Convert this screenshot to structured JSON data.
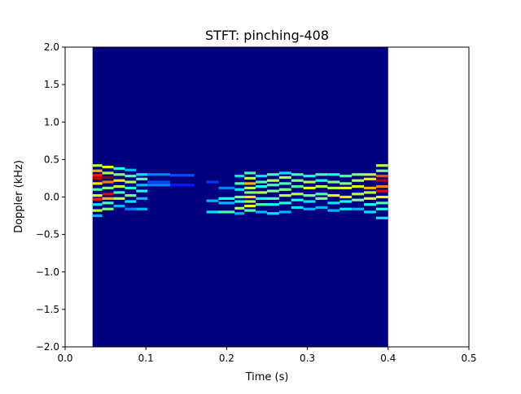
{
  "chart_data": {
    "type": "heatmap",
    "title": "STFT: pinching-408",
    "xlabel": "Time (s)",
    "ylabel": "Doppler (kHz)",
    "xlim": [
      0.0,
      0.5
    ],
    "ylim": [
      -2.0,
      2.0
    ],
    "x_ticks": [
      0.0,
      0.1,
      0.2,
      0.3,
      0.4,
      0.5
    ],
    "x_tick_labels": [
      "0.0",
      "0.1",
      "0.2",
      "0.3",
      "0.4",
      "0.5"
    ],
    "y_ticks": [
      -2.0,
      -1.5,
      -1.0,
      -0.5,
      0.0,
      0.5,
      1.0,
      1.5,
      2.0
    ],
    "y_tick_labels": [
      "−2.0",
      "−1.5",
      "−1.0",
      "−0.5",
      "0.0",
      "0.5",
      "1.0",
      "1.5",
      "2.0"
    ],
    "grid": false,
    "colormap": "jet",
    "background_color": "#00007f",
    "data_extent": {
      "time": [
        0.034,
        0.4
      ],
      "doppler": [
        -2.0,
        2.0
      ]
    },
    "intensity_scale": [
      0,
      1
    ],
    "cells": [
      {
        "t0": 0.034,
        "t1": 0.046,
        "f": 0.42,
        "v": 0.55
      },
      {
        "t0": 0.034,
        "t1": 0.046,
        "f": 0.35,
        "v": 0.7
      },
      {
        "t0": 0.034,
        "t1": 0.046,
        "f": 0.29,
        "v": 0.85
      },
      {
        "t0": 0.034,
        "t1": 0.046,
        "f": 0.25,
        "v": 0.95
      },
      {
        "t0": 0.034,
        "t1": 0.046,
        "f": 0.18,
        "v": 0.65
      },
      {
        "t0": 0.034,
        "t1": 0.046,
        "f": 0.1,
        "v": 0.45
      },
      {
        "t0": 0.034,
        "t1": 0.046,
        "f": 0.02,
        "v": 0.6
      },
      {
        "t0": 0.034,
        "t1": 0.046,
        "f": -0.03,
        "v": 0.85
      },
      {
        "t0": 0.034,
        "t1": 0.046,
        "f": -0.1,
        "v": 0.35
      },
      {
        "t0": 0.034,
        "t1": 0.046,
        "f": -0.18,
        "v": 0.55
      },
      {
        "t0": 0.034,
        "t1": 0.046,
        "f": -0.25,
        "v": 0.3
      },
      {
        "t0": 0.046,
        "t1": 0.06,
        "f": 0.4,
        "v": 0.6
      },
      {
        "t0": 0.046,
        "t1": 0.06,
        "f": 0.32,
        "v": 0.55
      },
      {
        "t0": 0.046,
        "t1": 0.06,
        "f": 0.26,
        "v": 1.0
      },
      {
        "t0": 0.046,
        "t1": 0.06,
        "f": 0.2,
        "v": 0.75
      },
      {
        "t0": 0.046,
        "t1": 0.06,
        "f": 0.12,
        "v": 0.5
      },
      {
        "t0": 0.046,
        "t1": 0.06,
        "f": 0.04,
        "v": 0.9
      },
      {
        "t0": 0.046,
        "t1": 0.06,
        "f": -0.02,
        "v": 0.7
      },
      {
        "t0": 0.046,
        "t1": 0.06,
        "f": -0.08,
        "v": 0.45
      },
      {
        "t0": 0.046,
        "t1": 0.06,
        "f": -0.16,
        "v": 0.5
      },
      {
        "t0": 0.06,
        "t1": 0.074,
        "f": 0.38,
        "v": 0.4
      },
      {
        "t0": 0.06,
        "t1": 0.074,
        "f": 0.3,
        "v": 0.5
      },
      {
        "t0": 0.06,
        "t1": 0.074,
        "f": 0.22,
        "v": 0.65
      },
      {
        "t0": 0.06,
        "t1": 0.074,
        "f": 0.14,
        "v": 0.55
      },
      {
        "t0": 0.06,
        "t1": 0.074,
        "f": 0.06,
        "v": 0.45
      },
      {
        "t0": 0.06,
        "t1": 0.074,
        "f": -0.02,
        "v": 0.55
      },
      {
        "t0": 0.06,
        "t1": 0.074,
        "f": -0.12,
        "v": 0.3
      },
      {
        "t0": 0.074,
        "t1": 0.088,
        "f": 0.36,
        "v": 0.3
      },
      {
        "t0": 0.074,
        "t1": 0.088,
        "f": 0.28,
        "v": 0.45
      },
      {
        "t0": 0.074,
        "t1": 0.088,
        "f": 0.2,
        "v": 0.55
      },
      {
        "t0": 0.074,
        "t1": 0.088,
        "f": 0.12,
        "v": 0.4
      },
      {
        "t0": 0.074,
        "t1": 0.088,
        "f": 0.02,
        "v": 0.5
      },
      {
        "t0": 0.074,
        "t1": 0.088,
        "f": -0.06,
        "v": 0.35
      },
      {
        "t0": 0.074,
        "t1": 0.088,
        "f": -0.16,
        "v": 0.25
      },
      {
        "t0": 0.088,
        "t1": 0.102,
        "f": 0.3,
        "v": 0.35
      },
      {
        "t0": 0.088,
        "t1": 0.102,
        "f": 0.24,
        "v": 0.45
      },
      {
        "t0": 0.088,
        "t1": 0.102,
        "f": 0.16,
        "v": 0.3
      },
      {
        "t0": 0.088,
        "t1": 0.102,
        "f": 0.08,
        "v": 0.4
      },
      {
        "t0": 0.088,
        "t1": 0.102,
        "f": -0.02,
        "v": 0.3
      },
      {
        "t0": 0.088,
        "t1": 0.102,
        "f": -0.16,
        "v": 0.3
      },
      {
        "t0": 0.102,
        "t1": 0.13,
        "f": 0.3,
        "v": 0.25
      },
      {
        "t0": 0.102,
        "t1": 0.13,
        "f": 0.2,
        "v": 0.2
      },
      {
        "t0": 0.102,
        "t1": 0.13,
        "f": 0.16,
        "v": 0.25
      },
      {
        "t0": 0.13,
        "t1": 0.16,
        "f": 0.29,
        "v": 0.2
      },
      {
        "t0": 0.13,
        "t1": 0.16,
        "f": 0.16,
        "v": 0.15
      },
      {
        "t0": 0.175,
        "t1": 0.19,
        "f": -0.05,
        "v": 0.3
      },
      {
        "t0": 0.175,
        "t1": 0.19,
        "f": -0.2,
        "v": 0.35
      },
      {
        "t0": 0.175,
        "t1": 0.19,
        "f": 0.2,
        "v": 0.18
      },
      {
        "t0": 0.19,
        "t1": 0.21,
        "f": 0.12,
        "v": 0.25
      },
      {
        "t0": 0.19,
        "t1": 0.21,
        "f": -0.02,
        "v": 0.4
      },
      {
        "t0": 0.19,
        "t1": 0.21,
        "f": -0.08,
        "v": 0.3
      },
      {
        "t0": 0.19,
        "t1": 0.21,
        "f": -0.2,
        "v": 0.45
      },
      {
        "t0": 0.21,
        "t1": 0.222,
        "f": 0.28,
        "v": 0.35
      },
      {
        "t0": 0.21,
        "t1": 0.222,
        "f": 0.18,
        "v": 0.45
      },
      {
        "t0": 0.21,
        "t1": 0.222,
        "f": 0.1,
        "v": 0.35
      },
      {
        "t0": 0.21,
        "t1": 0.222,
        "f": 0.0,
        "v": 0.5
      },
      {
        "t0": 0.21,
        "t1": 0.222,
        "f": -0.06,
        "v": 0.4
      },
      {
        "t0": 0.21,
        "t1": 0.222,
        "f": -0.15,
        "v": 0.55
      },
      {
        "t0": 0.21,
        "t1": 0.222,
        "f": -0.22,
        "v": 0.3
      },
      {
        "t0": 0.222,
        "t1": 0.236,
        "f": 0.32,
        "v": 0.45
      },
      {
        "t0": 0.222,
        "t1": 0.236,
        "f": 0.25,
        "v": 0.55
      },
      {
        "t0": 0.222,
        "t1": 0.236,
        "f": 0.18,
        "v": 0.7
      },
      {
        "t0": 0.222,
        "t1": 0.236,
        "f": 0.12,
        "v": 0.55
      },
      {
        "t0": 0.222,
        "t1": 0.236,
        "f": 0.06,
        "v": 0.5
      },
      {
        "t0": 0.222,
        "t1": 0.236,
        "f": 0.0,
        "v": 0.65
      },
      {
        "t0": 0.222,
        "t1": 0.236,
        "f": -0.06,
        "v": 0.55
      },
      {
        "t0": 0.222,
        "t1": 0.236,
        "f": -0.12,
        "v": 0.6
      },
      {
        "t0": 0.222,
        "t1": 0.236,
        "f": -0.18,
        "v": 0.45
      },
      {
        "t0": 0.236,
        "t1": 0.25,
        "f": 0.28,
        "v": 0.35
      },
      {
        "t0": 0.236,
        "t1": 0.25,
        "f": 0.2,
        "v": 0.45
      },
      {
        "t0": 0.236,
        "t1": 0.25,
        "f": 0.14,
        "v": 0.4
      },
      {
        "t0": 0.236,
        "t1": 0.25,
        "f": 0.06,
        "v": 0.55
      },
      {
        "t0": 0.236,
        "t1": 0.25,
        "f": -0.02,
        "v": 0.4
      },
      {
        "t0": 0.236,
        "t1": 0.25,
        "f": -0.1,
        "v": 0.45
      },
      {
        "t0": 0.236,
        "t1": 0.25,
        "f": -0.2,
        "v": 0.3
      },
      {
        "t0": 0.25,
        "t1": 0.265,
        "f": 0.3,
        "v": 0.45
      },
      {
        "t0": 0.25,
        "t1": 0.265,
        "f": 0.22,
        "v": 0.55
      },
      {
        "t0": 0.25,
        "t1": 0.265,
        "f": 0.16,
        "v": 0.45
      },
      {
        "t0": 0.25,
        "t1": 0.265,
        "f": 0.08,
        "v": 0.5
      },
      {
        "t0": 0.25,
        "t1": 0.265,
        "f": -0.02,
        "v": 0.45
      },
      {
        "t0": 0.25,
        "t1": 0.265,
        "f": -0.1,
        "v": 0.4
      },
      {
        "t0": 0.25,
        "t1": 0.265,
        "f": -0.22,
        "v": 0.35
      },
      {
        "t0": 0.265,
        "t1": 0.28,
        "f": 0.32,
        "v": 0.35
      },
      {
        "t0": 0.265,
        "t1": 0.28,
        "f": 0.26,
        "v": 0.55
      },
      {
        "t0": 0.265,
        "t1": 0.28,
        "f": 0.18,
        "v": 0.45
      },
      {
        "t0": 0.265,
        "t1": 0.28,
        "f": 0.1,
        "v": 0.5
      },
      {
        "t0": 0.265,
        "t1": 0.28,
        "f": 0.02,
        "v": 0.55
      },
      {
        "t0": 0.265,
        "t1": 0.28,
        "f": -0.08,
        "v": 0.4
      },
      {
        "t0": 0.265,
        "t1": 0.28,
        "f": -0.2,
        "v": 0.3
      },
      {
        "t0": 0.28,
        "t1": 0.295,
        "f": 0.3,
        "v": 0.45
      },
      {
        "t0": 0.28,
        "t1": 0.295,
        "f": 0.22,
        "v": 0.5
      },
      {
        "t0": 0.28,
        "t1": 0.295,
        "f": 0.14,
        "v": 0.45
      },
      {
        "t0": 0.28,
        "t1": 0.295,
        "f": 0.04,
        "v": 0.55
      },
      {
        "t0": 0.28,
        "t1": 0.295,
        "f": -0.04,
        "v": 0.4
      },
      {
        "t0": 0.28,
        "t1": 0.295,
        "f": -0.14,
        "v": 0.35
      },
      {
        "t0": 0.295,
        "t1": 0.31,
        "f": 0.28,
        "v": 0.4
      },
      {
        "t0": 0.295,
        "t1": 0.31,
        "f": 0.2,
        "v": 0.55
      },
      {
        "t0": 0.295,
        "t1": 0.31,
        "f": 0.12,
        "v": 0.6
      },
      {
        "t0": 0.295,
        "t1": 0.31,
        "f": 0.02,
        "v": 0.5
      },
      {
        "t0": 0.295,
        "t1": 0.31,
        "f": -0.06,
        "v": 0.35
      },
      {
        "t0": 0.295,
        "t1": 0.31,
        "f": -0.16,
        "v": 0.3
      },
      {
        "t0": 0.31,
        "t1": 0.325,
        "f": 0.3,
        "v": 0.45
      },
      {
        "t0": 0.31,
        "t1": 0.325,
        "f": 0.22,
        "v": 0.4
      },
      {
        "t0": 0.31,
        "t1": 0.325,
        "f": 0.14,
        "v": 0.55
      },
      {
        "t0": 0.31,
        "t1": 0.325,
        "f": 0.04,
        "v": 0.45
      },
      {
        "t0": 0.31,
        "t1": 0.325,
        "f": -0.02,
        "v": 0.5
      },
      {
        "t0": 0.31,
        "t1": 0.325,
        "f": -0.14,
        "v": 0.3
      },
      {
        "t0": 0.325,
        "t1": 0.34,
        "f": 0.3,
        "v": 0.4
      },
      {
        "t0": 0.325,
        "t1": 0.34,
        "f": 0.2,
        "v": 0.5
      },
      {
        "t0": 0.325,
        "t1": 0.34,
        "f": 0.12,
        "v": 0.55
      },
      {
        "t0": 0.325,
        "t1": 0.34,
        "f": 0.02,
        "v": 0.6
      },
      {
        "t0": 0.325,
        "t1": 0.34,
        "f": -0.08,
        "v": 0.35
      },
      {
        "t0": 0.325,
        "t1": 0.34,
        "f": -0.18,
        "v": 0.3
      },
      {
        "t0": 0.34,
        "t1": 0.355,
        "f": 0.28,
        "v": 0.45
      },
      {
        "t0": 0.34,
        "t1": 0.355,
        "f": 0.18,
        "v": 0.5
      },
      {
        "t0": 0.34,
        "t1": 0.355,
        "f": 0.12,
        "v": 0.6
      },
      {
        "t0": 0.34,
        "t1": 0.355,
        "f": 0.0,
        "v": 0.65
      },
      {
        "t0": 0.34,
        "t1": 0.355,
        "f": -0.06,
        "v": 0.4
      },
      {
        "t0": 0.34,
        "t1": 0.355,
        "f": -0.16,
        "v": 0.35
      },
      {
        "t0": 0.355,
        "t1": 0.37,
        "f": 0.3,
        "v": 0.5
      },
      {
        "t0": 0.355,
        "t1": 0.37,
        "f": 0.22,
        "v": 0.55
      },
      {
        "t0": 0.355,
        "t1": 0.37,
        "f": 0.14,
        "v": 0.6
      },
      {
        "t0": 0.355,
        "t1": 0.37,
        "f": 0.04,
        "v": 0.55
      },
      {
        "t0": 0.355,
        "t1": 0.37,
        "f": -0.04,
        "v": 0.5
      },
      {
        "t0": 0.355,
        "t1": 0.37,
        "f": -0.16,
        "v": 0.3
      },
      {
        "t0": 0.37,
        "t1": 0.385,
        "f": 0.3,
        "v": 0.55
      },
      {
        "t0": 0.37,
        "t1": 0.385,
        "f": 0.24,
        "v": 0.65
      },
      {
        "t0": 0.37,
        "t1": 0.385,
        "f": 0.12,
        "v": 0.7
      },
      {
        "t0": 0.37,
        "t1": 0.385,
        "f": 0.06,
        "v": 0.55
      },
      {
        "t0": 0.37,
        "t1": 0.385,
        "f": -0.02,
        "v": 0.6
      },
      {
        "t0": 0.37,
        "t1": 0.385,
        "f": -0.1,
        "v": 0.4
      },
      {
        "t0": 0.37,
        "t1": 0.385,
        "f": -0.2,
        "v": 0.35
      },
      {
        "t0": 0.385,
        "t1": 0.4,
        "f": 0.42,
        "v": 0.55
      },
      {
        "t0": 0.385,
        "t1": 0.4,
        "f": 0.35,
        "v": 0.5
      },
      {
        "t0": 0.385,
        "t1": 0.4,
        "f": 0.28,
        "v": 0.8
      },
      {
        "t0": 0.385,
        "t1": 0.4,
        "f": 0.22,
        "v": 0.95
      },
      {
        "t0": 0.385,
        "t1": 0.4,
        "f": 0.14,
        "v": 0.75
      },
      {
        "t0": 0.385,
        "t1": 0.4,
        "f": 0.08,
        "v": 0.9
      },
      {
        "t0": 0.385,
        "t1": 0.4,
        "f": 0.0,
        "v": 0.6
      },
      {
        "t0": 0.385,
        "t1": 0.4,
        "f": -0.08,
        "v": 0.45
      },
      {
        "t0": 0.385,
        "t1": 0.4,
        "f": -0.16,
        "v": 0.4
      },
      {
        "t0": 0.385,
        "t1": 0.4,
        "f": -0.28,
        "v": 0.35
      }
    ]
  }
}
